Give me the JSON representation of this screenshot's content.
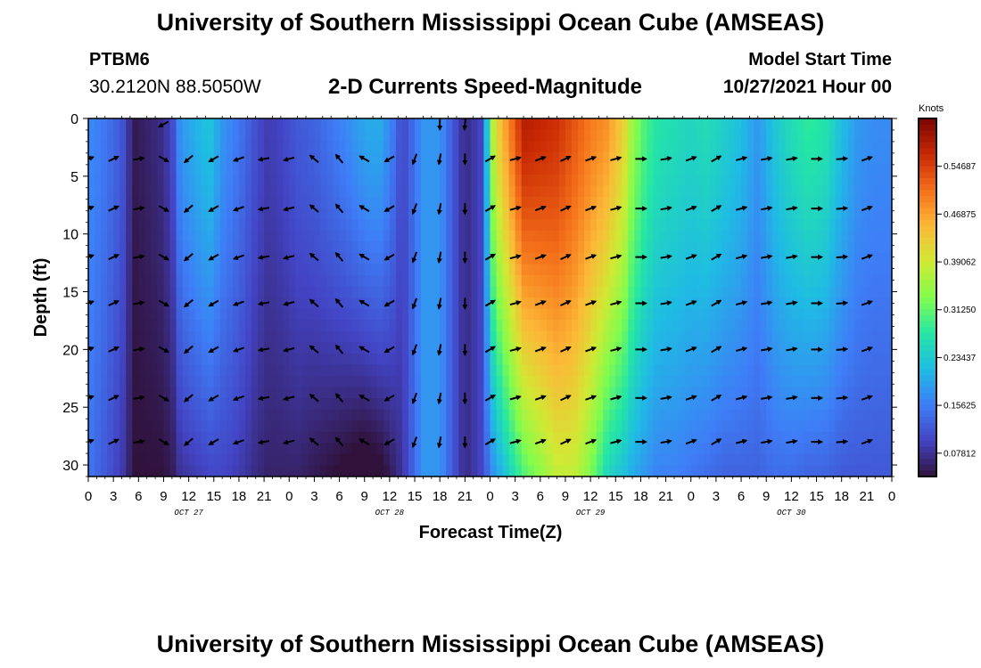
{
  "header": {
    "title": "University of Southern Mississippi Ocean Cube (AMSEAS)",
    "station": "PTBM6",
    "coords": "30.2120N  88.5050W",
    "subtitle": "2-D Currents Speed-Magnitude",
    "model_label": "Model Start Time",
    "model_time": "10/27/2021 Hour 00"
  },
  "footer": {
    "title": "University of Southern Mississippi Ocean Cube (AMSEAS)"
  },
  "chart_data": {
    "type": "heatmap",
    "title": "2-D Currents Speed-Magnitude",
    "xlabel": "Forecast Time(Z)",
    "ylabel": "Depth (ft)",
    "x_hours_range": [
      0,
      96
    ],
    "x_tick_step_hours": 3,
    "x_tick_labels": [
      "0",
      "3",
      "6",
      "9",
      "12",
      "15",
      "18",
      "21",
      "0",
      "3",
      "6",
      "9",
      "12",
      "15",
      "18",
      "21",
      "0",
      "3",
      "6",
      "9",
      "12",
      "15",
      "18",
      "21",
      "0",
      "3",
      "6",
      "9",
      "12",
      "15",
      "18",
      "21",
      "0"
    ],
    "day_labels": [
      {
        "label": "OCT 27",
        "hour": 12
      },
      {
        "label": "OCT 28",
        "hour": 36
      },
      {
        "label": "OCT 29",
        "hour": 60
      },
      {
        "label": "OCT 30",
        "hour": 84
      }
    ],
    "y_range_ft": [
      0,
      31
    ],
    "y_ticks": [
      0,
      5,
      10,
      15,
      20,
      25,
      30
    ],
    "colorbar": {
      "label": "Knots",
      "min": 0.04,
      "max": 0.625,
      "ticks": [
        "0.07812",
        "0.15625",
        "0.23437",
        "0.31250",
        "0.39062",
        "0.46875",
        "0.54687"
      ],
      "tick_values": [
        0.07812,
        0.15625,
        0.23437,
        0.3125,
        0.39062,
        0.46875,
        0.54687
      ]
    },
    "speed_profile": {
      "hours": [
        0,
        2,
        4,
        5.5,
        7,
        8.5,
        10,
        11,
        13,
        14.5,
        16,
        18,
        20,
        21.5,
        23,
        25,
        27,
        29,
        31,
        32.5,
        33.5,
        35,
        36.5,
        37.5,
        38.5,
        40,
        42,
        43.5,
        45,
        47,
        48.5,
        52,
        56,
        58,
        60,
        62,
        64,
        65,
        66.5,
        68,
        70,
        72,
        74,
        76,
        78,
        80,
        82,
        84,
        86,
        88,
        90,
        92,
        94,
        96
      ],
      "surface": [
        0.17,
        0.15,
        0.12,
        0.05,
        0.06,
        0.07,
        0.1,
        0.18,
        0.21,
        0.23,
        0.18,
        0.15,
        0.11,
        0.09,
        0.1,
        0.12,
        0.13,
        0.15,
        0.17,
        0.19,
        0.2,
        0.2,
        0.15,
        0.1,
        0.13,
        0.18,
        0.18,
        0.12,
        0.07,
        0.1,
        0.4,
        0.58,
        0.56,
        0.53,
        0.5,
        0.48,
        0.42,
        0.35,
        0.3,
        0.27,
        0.26,
        0.25,
        0.26,
        0.24,
        0.22,
        0.18,
        0.23,
        0.26,
        0.28,
        0.27,
        0.22,
        0.18,
        0.17,
        0.17
      ],
      "bottom": [
        0.15,
        0.12,
        0.09,
        0.04,
        0.04,
        0.04,
        0.05,
        0.08,
        0.09,
        0.1,
        0.1,
        0.09,
        0.07,
        0.06,
        0.06,
        0.06,
        0.05,
        0.04,
        0.03,
        0.02,
        0.02,
        0.03,
        0.06,
        0.08,
        0.12,
        0.18,
        0.18,
        0.12,
        0.07,
        0.1,
        0.18,
        0.3,
        0.38,
        0.38,
        0.33,
        0.25,
        0.22,
        0.2,
        0.18,
        0.16,
        0.16,
        0.15,
        0.14,
        0.13,
        0.13,
        0.13,
        0.14,
        0.14,
        0.13,
        0.13,
        0.12,
        0.12,
        0.12,
        0.12
      ]
    },
    "vector_field": {
      "hours": [
        0,
        3,
        6,
        9,
        12,
        15,
        18,
        21,
        24,
        27,
        30,
        33,
        36,
        39,
        42,
        45,
        48,
        51,
        54,
        57,
        60,
        63,
        66,
        69,
        72,
        75,
        78,
        81,
        84,
        87,
        90,
        93
      ],
      "depths_ft": [
        3.5,
        7.8,
        12.0,
        16.0,
        20.0,
        24.2,
        28.0
      ],
      "direction_deg": [
        70,
        65,
        80,
        120,
        230,
        240,
        250,
        260,
        255,
        310,
        320,
        300,
        240,
        200,
        190,
        180,
        60,
        75,
        70,
        65,
        70,
        75,
        90,
        80,
        70,
        60,
        75,
        80,
        80,
        90,
        85,
        70
      ],
      "surface_row": {
        "hours": [
          9,
          42,
          45
        ],
        "direction_deg": [
          240,
          180,
          185
        ]
      }
    }
  }
}
